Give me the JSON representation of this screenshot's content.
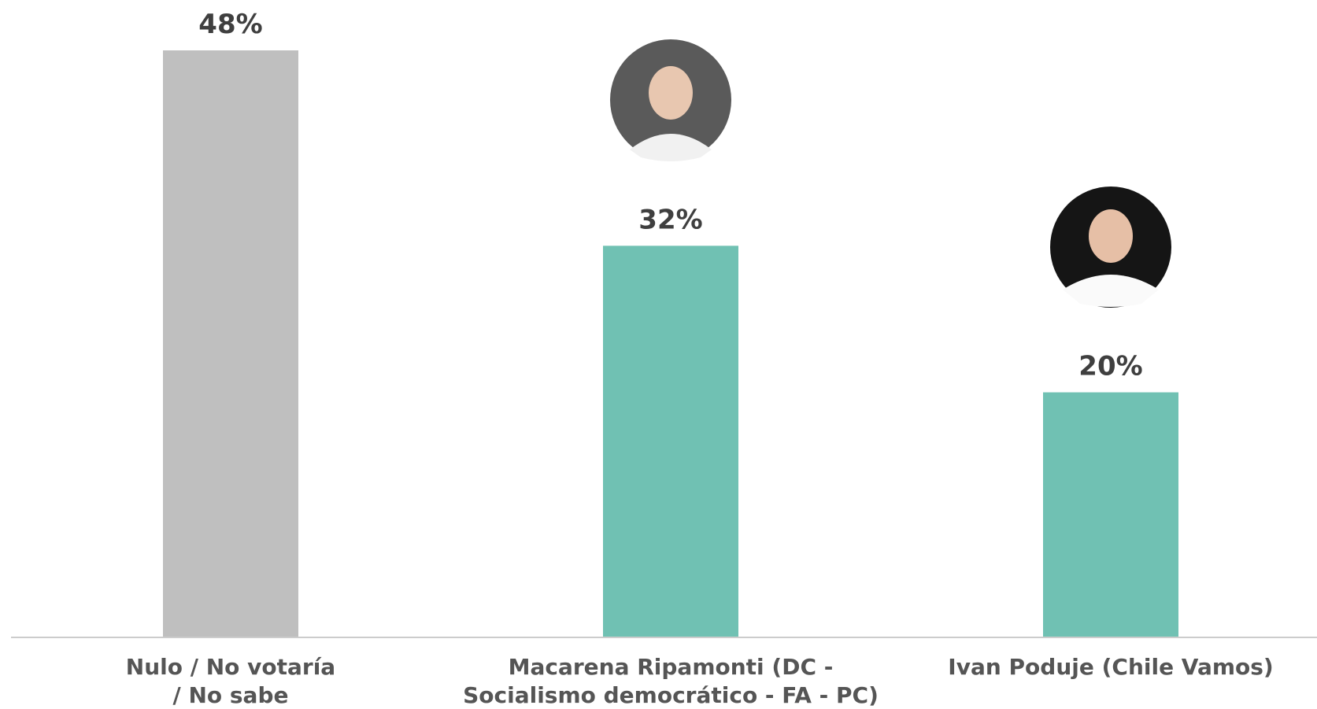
{
  "chart_data": {
    "type": "bar",
    "categories": [
      "Nulo / No votaría\n/ No sabe",
      "Macarena Ripamonti (DC -\nSocialismo democrático - FA - PC)",
      "Ivan Poduje (Chile Vamos)"
    ],
    "values": [
      48,
      32,
      20
    ],
    "value_labels": [
      "48%",
      "32%",
      "20%"
    ],
    "colors": [
      "#bfbfbf",
      "#70c1b3",
      "#70c1b3"
    ]
  }
}
